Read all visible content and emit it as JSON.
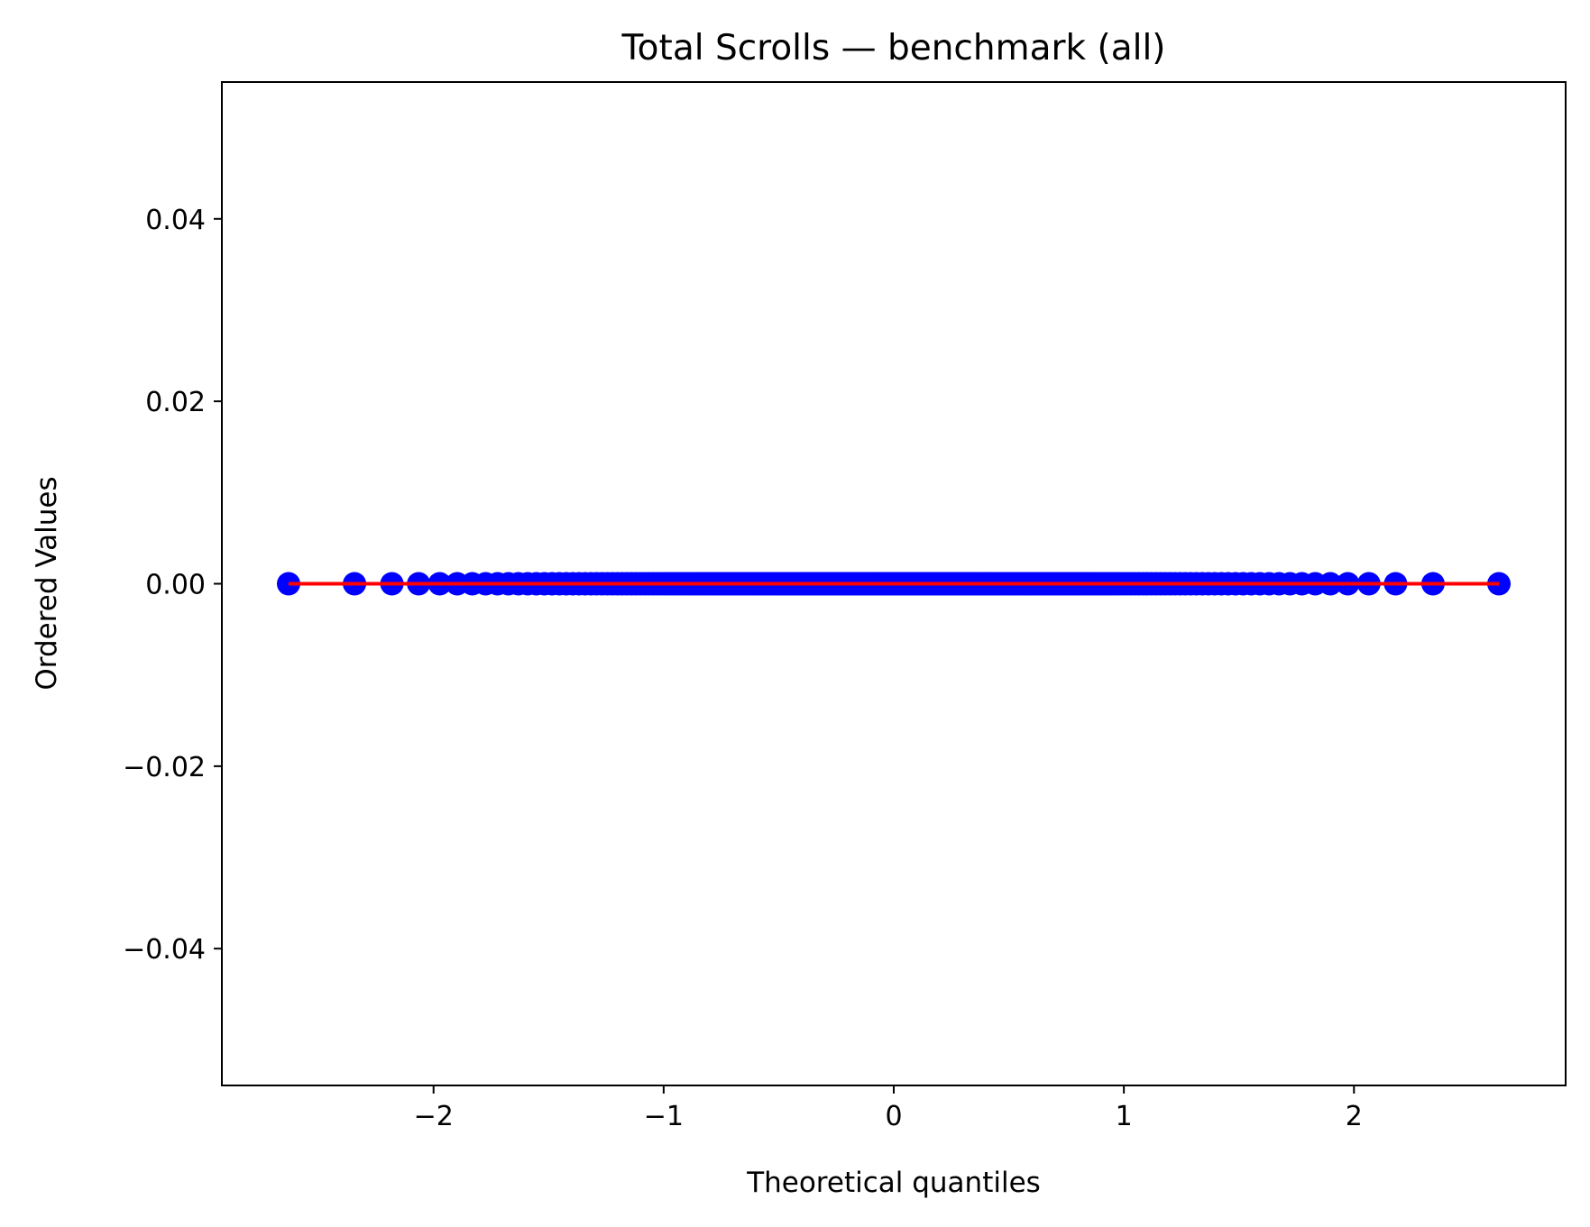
{
  "chart_data": {
    "type": "scatter",
    "title": "Total Scrolls — benchmark (all)",
    "xlabel": "Theoretical quantiles",
    "ylabel": "Ordered Values",
    "xlim": [
      -2.92,
      2.92
    ],
    "ylim": [
      -0.055,
      0.055
    ],
    "x_ticks": [
      {
        "value": -2,
        "label": "−2"
      },
      {
        "value": -1,
        "label": "−1"
      },
      {
        "value": 0,
        "label": "0"
      },
      {
        "value": 1,
        "label": "1"
      },
      {
        "value": 2,
        "label": "2"
      }
    ],
    "y_ticks": [
      {
        "value": 0.04,
        "label": "0.04"
      },
      {
        "value": 0.02,
        "label": "0.02"
      },
      {
        "value": 0.0,
        "label": "0.00"
      },
      {
        "value": -0.02,
        "label": "−0.02"
      },
      {
        "value": -0.04,
        "label": "−0.04"
      }
    ],
    "grid": false,
    "point_count": 250,
    "point_y_value": 0,
    "x_extent": [
      -2.63,
      2.63
    ],
    "fit_line": {
      "slope": 0,
      "intercept": 0,
      "x": [
        -2.63,
        2.63
      ]
    },
    "colors": {
      "points": "#0000ff",
      "fit_line": "#ff0000"
    }
  }
}
